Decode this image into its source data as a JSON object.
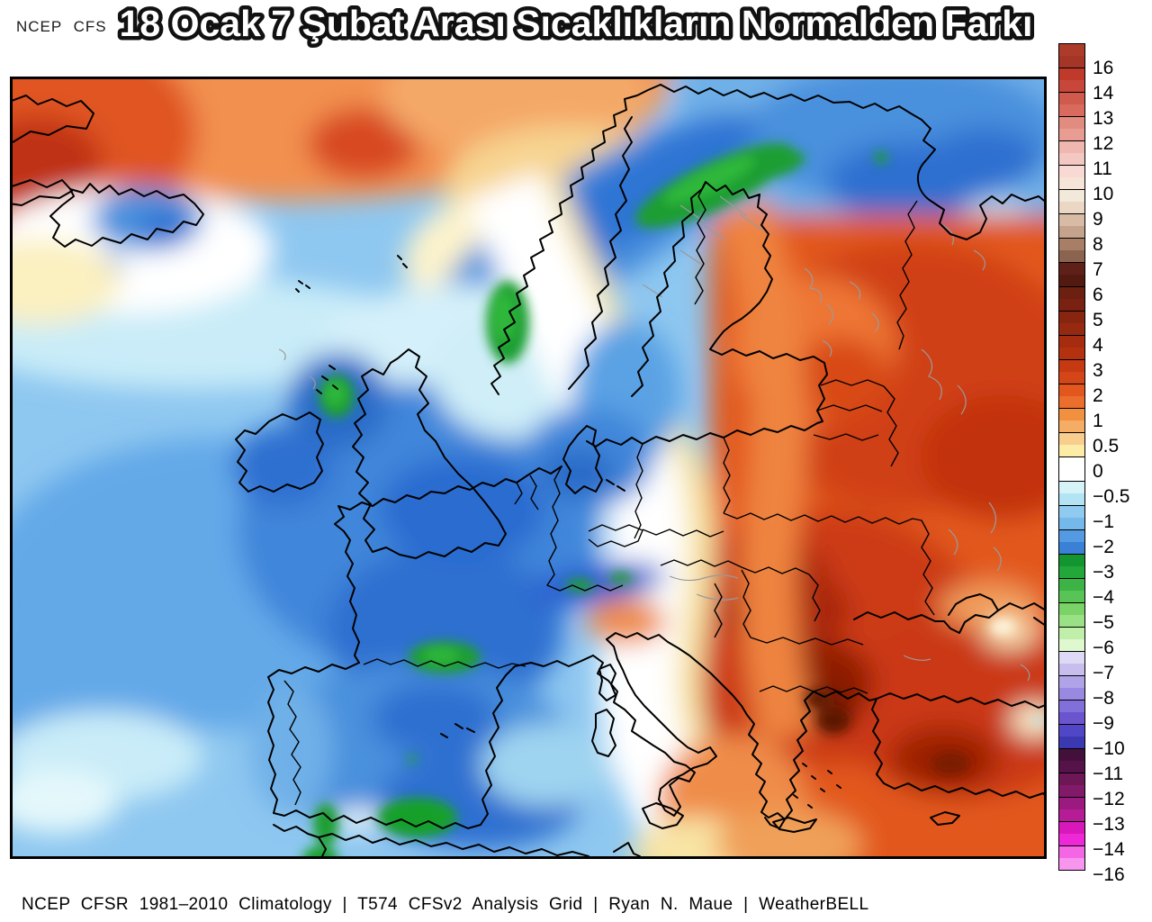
{
  "header": {
    "model_line_fragment": "NCEP CFS",
    "title": "18 Ocak 7 Şubat Arası Sıcaklıkların Normalden Farkı"
  },
  "footer": {
    "caption": "NCEP CFSR 1981–2010 Climatology | T574 CFSv2 Analysis Grid | Ryan N. Maue | WeatherBELL"
  },
  "colorbar": {
    "orientation": "vertical",
    "labels": [
      "16",
      "14",
      "13",
      "12",
      "11",
      "10",
      "9",
      "8",
      "7",
      "6",
      "5",
      "4",
      "3",
      "2",
      "1",
      "0.5",
      "0",
      "−0.5",
      "−1",
      "−2",
      "−3",
      "−4",
      "−5",
      "−6",
      "−7",
      "−8",
      "−9",
      "−10",
      "−11",
      "−12",
      "−13",
      "−14",
      "−16"
    ],
    "cells": [
      [
        "#ad3b2a",
        "#a53527"
      ],
      [
        "#bf3a2b",
        "#c8473a"
      ],
      [
        "#d05a4b",
        "#d96b5e"
      ],
      [
        "#e28b7f",
        "#e99c92"
      ],
      [
        "#f0b7b0",
        "#f4c8c2"
      ],
      [
        "#f8d9d3",
        "#f6e4d8"
      ],
      [
        "#f2e9da",
        "#ead8c5"
      ],
      [
        "#d8bba4",
        "#c5a28b"
      ],
      [
        "#a87f66",
        "#8b6450"
      ],
      [
        "#5e2018",
        "#521a11"
      ],
      [
        "#6b2012",
        "#7a2212"
      ],
      [
        "#882511",
        "#962a10"
      ],
      [
        "#a52c0e",
        "#b43110"
      ],
      [
        "#c53a13",
        "#d44517"
      ],
      [
        "#e3561e",
        "#eb6e2d"
      ],
      [
        "#f1913f",
        "#f5ad66"
      ],
      [
        "#f9cd8d",
        "#fdeca6"
      ],
      [
        "#ffffff",
        "#ffffff"
      ],
      [
        "#d6f3f8",
        "#b2e4f3"
      ],
      [
        "#8fcaf0",
        "#75b8ea"
      ],
      [
        "#539ae2",
        "#3a80d6"
      ],
      [
        "#13962f",
        "#23a63a"
      ],
      [
        "#3db345",
        "#58c455"
      ],
      [
        "#79d366",
        "#99e184"
      ],
      [
        "#c0efa9",
        "#dff8cf"
      ],
      [
        "#ded9f5",
        "#c7beee"
      ],
      [
        "#b0a3e8",
        "#9a89e1"
      ],
      [
        "#8170d9",
        "#6a55cf"
      ],
      [
        "#5146c5",
        "#3c38b2"
      ],
      [
        "#43103b",
        "#551349"
      ],
      [
        "#6d1757",
        "#831969"
      ],
      [
        "#9b1a7f",
        "#b71c97"
      ],
      [
        "#d818bb",
        "#ee27d7"
      ],
      [
        "#f566e7",
        "#f896ef"
      ]
    ]
  },
  "map_summary": {
    "type": "filled-contour temperature anomaly map of Europe",
    "regions": [
      {
        "area": "Arctic / Greenland edge (top left)",
        "anomaly": "+3 to +7"
      },
      {
        "area": "Northeast Atlantic / Iceland surroundings",
        "anomaly": "-1 to -2, Iceland interior -2 to -3"
      },
      {
        "area": "British Isles and France",
        "anomaly": "-2 to -3, Scottish Highlands -3 to -4"
      },
      {
        "area": "Iberia and NW Africa",
        "anomaly": "-2 to -3, mountain spots -3 to -5"
      },
      {
        "area": "Scandinavian mountains / Lapland",
        "anomaly": "-2 to -4, green cores -3 to -5"
      },
      {
        "area": "Central Europe (Germany, Poland)",
        "anomaly": "0 to +1 transition band"
      },
      {
        "area": "Finland, Baltics, western Russia",
        "anomaly": "+2 to +5"
      },
      {
        "area": "Balkans, Black Sea, Turkey",
        "anomaly": "+4 to +7"
      }
    ]
  }
}
